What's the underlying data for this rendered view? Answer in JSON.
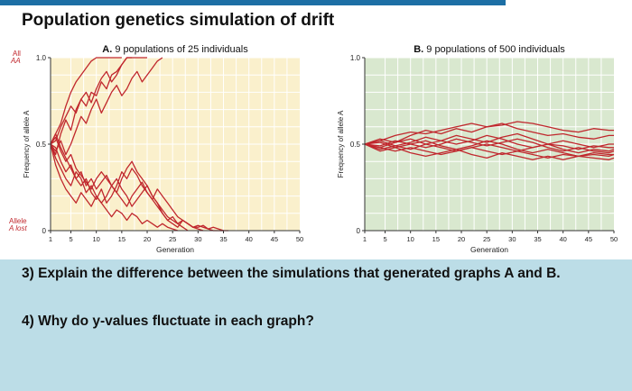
{
  "page": {
    "title": "Population genetics simulation of drift"
  },
  "questions": {
    "q3": "3) Explain the difference between the simulations that generated graphs A and B.",
    "q4": "4) Why do y-values fluctuate in each graph?"
  },
  "colors": {
    "line": "#c0272d",
    "plot_a_bg": "#faf0cc",
    "plot_b_bg": "#d9e8cf",
    "grid": "#ffffff",
    "annotation": "#c0272d",
    "background": "#bcdde7",
    "top_bar": "#1d6fa5"
  },
  "chart_data": [
    {
      "type": "line",
      "panel_letter": "A.",
      "title": "9 populations of 25 individuals",
      "xlabel": "Generation",
      "ylabel": "Frequency of allele A",
      "xlim": [
        1,
        50
      ],
      "ylim": [
        0,
        1
      ],
      "xticks": [
        1,
        5,
        10,
        15,
        20,
        25,
        30,
        35,
        40,
        45,
        50
      ],
      "yticks": [
        {
          "value": 0,
          "label": "0"
        },
        {
          "value": 0.5,
          "label": "0.5"
        },
        {
          "value": 1,
          "label": "1.0"
        }
      ],
      "grid": true,
      "annotations": [
        {
          "text": "All",
          "y": 1
        },
        {
          "text": "AA",
          "y": 1
        },
        {
          "text": "Allele",
          "y": 0
        },
        {
          "text": "A lost",
          "y": 0
        }
      ],
      "series": [
        {
          "x": [
            1,
            2,
            3,
            4,
            5,
            6,
            7,
            8,
            9,
            10,
            11,
            12,
            13,
            14,
            15
          ],
          "y": [
            0.5,
            0.56,
            0.62,
            0.72,
            0.8,
            0.86,
            0.9,
            0.94,
            0.98,
            1.0,
            1.0,
            1.0,
            1.0,
            1.0,
            1.0
          ]
        },
        {
          "x": [
            1,
            2,
            3,
            4,
            5,
            6,
            7,
            8,
            9,
            10,
            11,
            12,
            13,
            14,
            15,
            16,
            17,
            18,
            19,
            20
          ],
          "y": [
            0.5,
            0.52,
            0.6,
            0.66,
            0.72,
            0.68,
            0.76,
            0.8,
            0.74,
            0.82,
            0.88,
            0.92,
            0.86,
            0.9,
            0.96,
            1.0,
            1.0,
            1.0,
            1.0,
            1.0
          ]
        },
        {
          "x": [
            1,
            2,
            3,
            4,
            5,
            6,
            7,
            8,
            9,
            10,
            11,
            12,
            13,
            14,
            15,
            16,
            17
          ],
          "y": [
            0.5,
            0.44,
            0.56,
            0.64,
            0.58,
            0.7,
            0.76,
            0.72,
            0.8,
            0.78,
            0.86,
            0.82,
            0.9,
            0.92,
            0.96,
            1.0,
            1.0
          ]
        },
        {
          "x": [
            1,
            2,
            3,
            4,
            5,
            6,
            7,
            8,
            9,
            10,
            11,
            12,
            13,
            14,
            15,
            16,
            17,
            18,
            19,
            20,
            21,
            22,
            23
          ],
          "y": [
            0.5,
            0.46,
            0.52,
            0.44,
            0.5,
            0.58,
            0.66,
            0.62,
            0.7,
            0.76,
            0.68,
            0.74,
            0.8,
            0.84,
            0.78,
            0.82,
            0.88,
            0.92,
            0.86,
            0.9,
            0.94,
            0.98,
            1.0
          ]
        },
        {
          "x": [
            1,
            2,
            3,
            4,
            5,
            6,
            7,
            8,
            9,
            10,
            11,
            12,
            13,
            14,
            15,
            16,
            17,
            18,
            19,
            20,
            21,
            22,
            23,
            24,
            25,
            26,
            27,
            28
          ],
          "y": [
            0.5,
            0.42,
            0.36,
            0.3,
            0.26,
            0.34,
            0.3,
            0.22,
            0.26,
            0.2,
            0.16,
            0.2,
            0.26,
            0.3,
            0.24,
            0.2,
            0.14,
            0.18,
            0.22,
            0.26,
            0.2,
            0.16,
            0.1,
            0.06,
            0.08,
            0.04,
            0.02,
            0.0
          ]
        },
        {
          "x": [
            1,
            2,
            3,
            4,
            5,
            6,
            7,
            8,
            9,
            10,
            11,
            12,
            13,
            14,
            15,
            16,
            17,
            18,
            19,
            20,
            21,
            22,
            23,
            24,
            25,
            26,
            27,
            28,
            29,
            30,
            31,
            32,
            33,
            34,
            35,
            36
          ],
          "y": [
            0.5,
            0.54,
            0.46,
            0.4,
            0.44,
            0.36,
            0.32,
            0.28,
            0.24,
            0.3,
            0.34,
            0.3,
            0.26,
            0.22,
            0.18,
            0.14,
            0.2,
            0.24,
            0.28,
            0.22,
            0.18,
            0.14,
            0.1,
            0.06,
            0.04,
            0.02,
            0.06,
            0.04,
            0.02,
            0.02,
            0.03,
            0.01,
            0.02,
            0.01,
            0.0,
            0.0
          ]
        },
        {
          "x": [
            1,
            2,
            3,
            4,
            5,
            6,
            7,
            8,
            9,
            10,
            11,
            12,
            13,
            14,
            15,
            16,
            17,
            18,
            19,
            20,
            21,
            22,
            23,
            24,
            25,
            26,
            27,
            28,
            29,
            30,
            31
          ],
          "y": [
            0.5,
            0.48,
            0.4,
            0.34,
            0.38,
            0.3,
            0.26,
            0.3,
            0.22,
            0.18,
            0.24,
            0.16,
            0.2,
            0.26,
            0.34,
            0.3,
            0.36,
            0.32,
            0.26,
            0.22,
            0.18,
            0.24,
            0.2,
            0.16,
            0.12,
            0.08,
            0.06,
            0.04,
            0.02,
            0.01,
            0.0
          ]
        },
        {
          "x": [
            1,
            2,
            3,
            4,
            5,
            6,
            7,
            8,
            9,
            10,
            11,
            12,
            13,
            14,
            15,
            16,
            17,
            18,
            19,
            20,
            21,
            22,
            23,
            24,
            25,
            26
          ],
          "y": [
            0.5,
            0.38,
            0.3,
            0.24,
            0.2,
            0.16,
            0.22,
            0.18,
            0.14,
            0.2,
            0.16,
            0.12,
            0.08,
            0.12,
            0.1,
            0.06,
            0.1,
            0.08,
            0.04,
            0.06,
            0.04,
            0.02,
            0.04,
            0.02,
            0.01,
            0.0
          ]
        },
        {
          "x": [
            1,
            2,
            3,
            4,
            5,
            6,
            7,
            8,
            9,
            10,
            11,
            12,
            13,
            14,
            15,
            16,
            17,
            18,
            19,
            20,
            21,
            22,
            23,
            24,
            25,
            26,
            27,
            28,
            29,
            30,
            31,
            32,
            33,
            34,
            35
          ],
          "y": [
            0.5,
            0.56,
            0.48,
            0.42,
            0.36,
            0.3,
            0.34,
            0.26,
            0.3,
            0.24,
            0.28,
            0.32,
            0.26,
            0.22,
            0.3,
            0.36,
            0.4,
            0.34,
            0.3,
            0.26,
            0.2,
            0.16,
            0.12,
            0.08,
            0.06,
            0.04,
            0.06,
            0.04,
            0.02,
            0.03,
            0.02,
            0.01,
            0.0,
            0.0,
            0.0
          ]
        }
      ]
    },
    {
      "type": "line",
      "panel_letter": "B.",
      "title": "9 populations of 500 individuals",
      "xlabel": "Generation",
      "ylabel": "Frequency of allele A",
      "xlim": [
        1,
        50
      ],
      "ylim": [
        0,
        1
      ],
      "xticks": [
        1,
        5,
        10,
        15,
        20,
        25,
        30,
        35,
        40,
        45,
        50
      ],
      "yticks": [
        {
          "value": 0,
          "label": "0"
        },
        {
          "value": 0.5,
          "label": "0.5"
        },
        {
          "value": 1,
          "label": "1.0"
        }
      ],
      "grid": true,
      "series": [
        {
          "x": [
            1,
            4,
            7,
            10,
            13,
            16,
            19,
            22,
            25,
            28,
            31,
            34,
            37,
            40,
            43,
            46,
            49,
            50
          ],
          "y": [
            0.5,
            0.52,
            0.55,
            0.57,
            0.56,
            0.58,
            0.6,
            0.62,
            0.6,
            0.61,
            0.63,
            0.62,
            0.6,
            0.58,
            0.57,
            0.59,
            0.58,
            0.58
          ]
        },
        {
          "x": [
            1,
            4,
            7,
            10,
            13,
            16,
            19,
            22,
            25,
            28,
            31,
            34,
            37,
            40,
            43,
            46,
            49,
            50
          ],
          "y": [
            0.5,
            0.53,
            0.51,
            0.55,
            0.58,
            0.56,
            0.59,
            0.57,
            0.6,
            0.62,
            0.59,
            0.57,
            0.55,
            0.56,
            0.54,
            0.53,
            0.55,
            0.55
          ]
        },
        {
          "x": [
            1,
            4,
            7,
            10,
            13,
            16,
            19,
            22,
            25,
            28,
            31,
            34,
            37,
            40,
            43,
            46,
            49,
            50
          ],
          "y": [
            0.5,
            0.48,
            0.51,
            0.53,
            0.5,
            0.52,
            0.55,
            0.53,
            0.51,
            0.54,
            0.56,
            0.53,
            0.5,
            0.52,
            0.5,
            0.48,
            0.5,
            0.5
          ]
        },
        {
          "x": [
            1,
            4,
            7,
            10,
            13,
            16,
            19,
            22,
            25,
            28,
            31,
            34,
            37,
            40,
            43,
            46,
            49,
            50
          ],
          "y": [
            0.5,
            0.52,
            0.49,
            0.51,
            0.54,
            0.52,
            0.5,
            0.52,
            0.55,
            0.53,
            0.5,
            0.48,
            0.5,
            0.49,
            0.47,
            0.49,
            0.48,
            0.48
          ]
        },
        {
          "x": [
            1,
            4,
            7,
            10,
            13,
            16,
            19,
            22,
            25,
            28,
            31,
            34,
            37,
            40,
            43,
            46,
            49,
            50
          ],
          "y": [
            0.5,
            0.49,
            0.52,
            0.5,
            0.48,
            0.5,
            0.53,
            0.51,
            0.49,
            0.51,
            0.53,
            0.51,
            0.48,
            0.46,
            0.48,
            0.46,
            0.45,
            0.46
          ]
        },
        {
          "x": [
            1,
            4,
            7,
            10,
            13,
            16,
            19,
            22,
            25,
            28,
            31,
            34,
            37,
            40,
            43,
            46,
            49,
            50
          ],
          "y": [
            0.5,
            0.47,
            0.49,
            0.47,
            0.5,
            0.48,
            0.46,
            0.48,
            0.5,
            0.48,
            0.46,
            0.48,
            0.5,
            0.47,
            0.45,
            0.47,
            0.46,
            0.47
          ]
        },
        {
          "x": [
            1,
            4,
            7,
            10,
            13,
            16,
            19,
            22,
            25,
            28,
            31,
            34,
            37,
            40,
            43,
            46,
            49,
            50
          ],
          "y": [
            0.5,
            0.48,
            0.46,
            0.48,
            0.46,
            0.44,
            0.46,
            0.48,
            0.46,
            0.44,
            0.46,
            0.44,
            0.42,
            0.44,
            0.43,
            0.44,
            0.43,
            0.44
          ]
        },
        {
          "x": [
            1,
            4,
            7,
            10,
            13,
            16,
            19,
            22,
            25,
            28,
            31,
            34,
            37,
            40,
            43,
            46,
            49,
            50
          ],
          "y": [
            0.5,
            0.46,
            0.48,
            0.45,
            0.43,
            0.45,
            0.47,
            0.44,
            0.42,
            0.45,
            0.43,
            0.41,
            0.43,
            0.41,
            0.43,
            0.42,
            0.41,
            0.42
          ]
        },
        {
          "x": [
            1,
            4,
            7,
            10,
            13,
            16,
            19,
            22,
            25,
            28,
            31,
            34,
            37,
            40,
            43,
            46,
            49,
            50
          ],
          "y": [
            0.5,
            0.51,
            0.48,
            0.5,
            0.52,
            0.49,
            0.47,
            0.49,
            0.52,
            0.5,
            0.47,
            0.45,
            0.47,
            0.45,
            0.43,
            0.45,
            0.44,
            0.44
          ]
        }
      ]
    }
  ]
}
